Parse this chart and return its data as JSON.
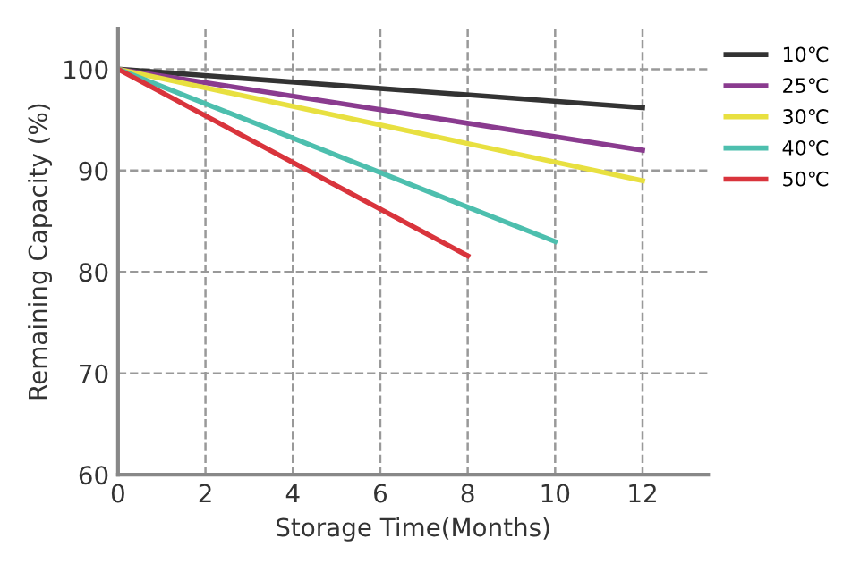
{
  "chart_data": {
    "type": "line",
    "xlabel": "Storage Time(Months)",
    "ylabel": "Remaining Capacity (%)",
    "xlim": [
      0,
      13.5
    ],
    "xticks": [
      0,
      2,
      4,
      6,
      8,
      10,
      12
    ],
    "ylim": [
      60,
      104
    ],
    "yticks": [
      60,
      70,
      80,
      90,
      100
    ],
    "grid": true,
    "legend": "top right",
    "series": [
      {
        "name": "10℃",
        "color": "#333333",
        "x": [
          0,
          12
        ],
        "values": [
          100,
          96.2
        ]
      },
      {
        "name": "25℃",
        "color": "#8a3b8f",
        "x": [
          0,
          12
        ],
        "values": [
          100,
          92
        ]
      },
      {
        "name": "30℃",
        "color": "#e8e040",
        "x": [
          0,
          12
        ],
        "values": [
          100,
          89
        ]
      },
      {
        "name": "40℃",
        "color": "#4dbfae",
        "x": [
          0,
          10
        ],
        "values": [
          100,
          83
        ]
      },
      {
        "name": "50℃",
        "color": "#d9343c",
        "x": [
          0,
          8
        ],
        "values": [
          100,
          81.6
        ]
      }
    ]
  }
}
